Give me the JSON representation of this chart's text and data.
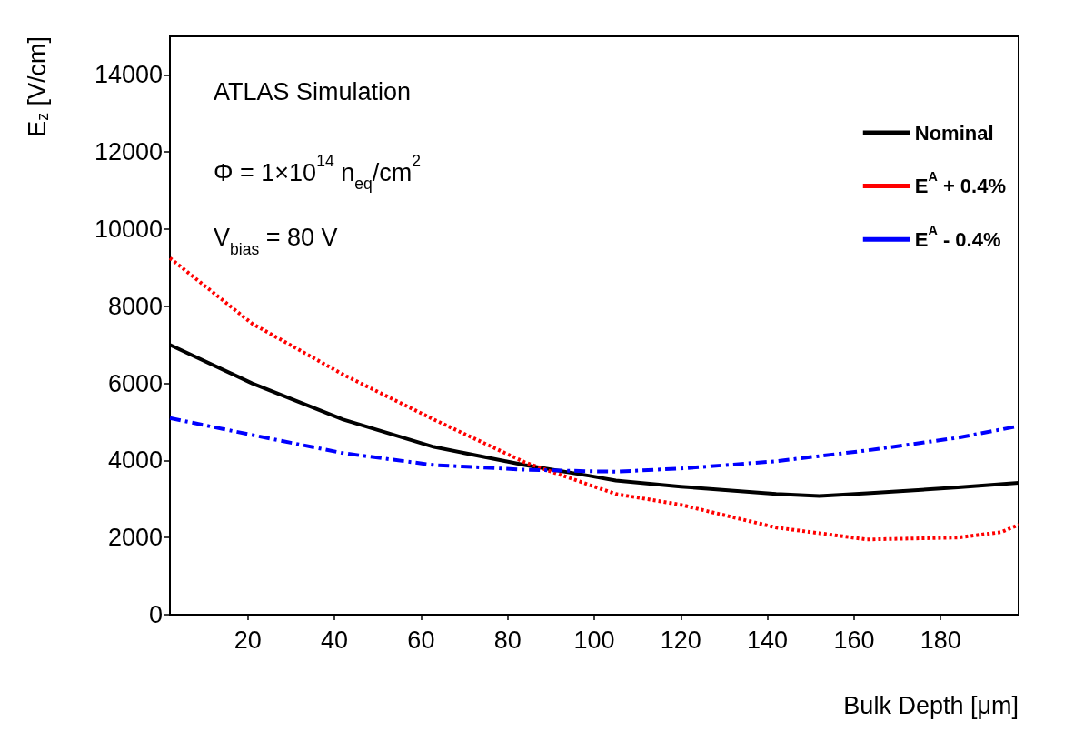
{
  "chart_data": {
    "type": "line",
    "xlabel": "Bulk Depth [μm]",
    "ylabel": "E$_{z}$ [V/cm]",
    "annotations": [
      "ATLAS Simulation",
      "Φ = 1×10$^{14}$ n$_{eq}$/cm$^{2}$",
      "V$_{bias}$ = 80 V"
    ],
    "xlim": [
      2,
      198
    ],
    "xticks": [
      20,
      40,
      60,
      80,
      100,
      120,
      140,
      160,
      180
    ],
    "ylim": [
      0,
      15000
    ],
    "yticks": [
      0,
      2000,
      4000,
      6000,
      8000,
      10000,
      12000,
      14000
    ],
    "grid": false,
    "legend": "top right",
    "marker": "none",
    "series": [
      {
        "name": "Nominal",
        "color": "#000000",
        "line_style": "solid",
        "x": [
          2,
          21,
          42,
          63,
          84,
          99,
          105,
          120,
          142,
          152,
          163,
          184,
          198
        ],
        "values": [
          7000,
          6000,
          5060,
          4350,
          3880,
          3600,
          3480,
          3320,
          3130,
          3080,
          3150,
          3300,
          3420
        ]
      },
      {
        "name": "E$^{A}$ + 0.4%",
        "color": "#ff0000",
        "line_style": "dotted",
        "x": [
          2,
          21,
          42,
          63,
          84,
          99,
          105,
          120,
          142,
          163,
          184,
          194,
          198
        ],
        "values": [
          9250,
          7550,
          6230,
          5060,
          3950,
          3360,
          3130,
          2850,
          2260,
          1950,
          2000,
          2140,
          2330
        ]
      },
      {
        "name": "E$^{A}$ - 0.4%",
        "color": "#0000ff",
        "line_style": "dashed",
        "x": [
          2,
          21,
          42,
          63,
          84,
          99,
          105,
          120,
          142,
          163,
          184,
          198
        ],
        "values": [
          5100,
          4660,
          4190,
          3880,
          3760,
          3720,
          3710,
          3790,
          3980,
          4260,
          4590,
          4890
        ]
      }
    ]
  }
}
